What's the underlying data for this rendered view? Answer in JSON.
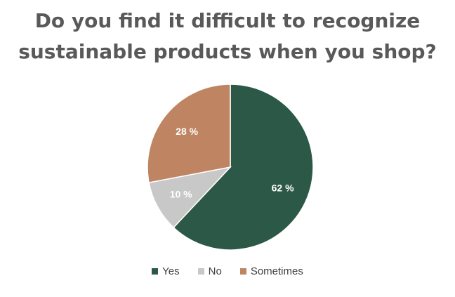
{
  "chart_data": {
    "type": "pie",
    "title_lines": [
      "Do you find it difficult to recognize",
      "sustainable products when you shop?"
    ],
    "slices": [
      {
        "label": "Yes",
        "value": 62,
        "value_label": "62 %",
        "color": "#2c5848"
      },
      {
        "label": "No",
        "value": 10,
        "value_label": "10 %",
        "color": "#c8c8c8"
      },
      {
        "label": "Sometimes",
        "value": 28,
        "value_label": "28 %",
        "color": "#bf8462"
      }
    ],
    "legend_placement": "bottom",
    "data_label_color": "#ffffff"
  }
}
